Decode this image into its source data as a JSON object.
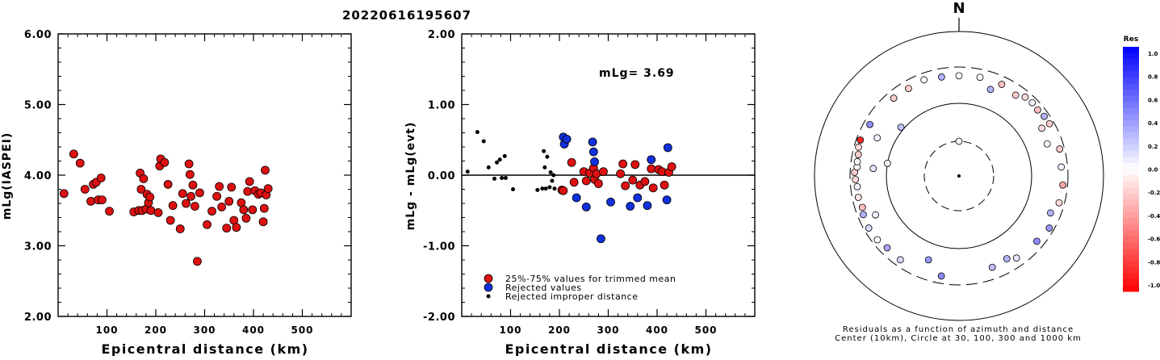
{
  "title": "20220616195607",
  "colors": {
    "red": "#dd1111",
    "blue": "#1130dd",
    "black": "#000000"
  },
  "chart_data": [
    {
      "type": "scatter",
      "name": "left",
      "xlabel": "Epicentral distance (km)",
      "ylabel": "mLg(IASPEI)",
      "xlim": [
        0,
        600
      ],
      "ylim": [
        2.0,
        6.0
      ],
      "xticks": [
        "100",
        "200",
        "300",
        "400",
        "500"
      ],
      "xtick_values": [
        100,
        200,
        300,
        400,
        500
      ],
      "yticks": [
        "2.00",
        "3.00",
        "4.00",
        "5.00",
        "6.00"
      ],
      "ytick_values": [
        2,
        3,
        4,
        5,
        6
      ],
      "points": [
        [
          12,
          3.74
        ],
        [
          32,
          4.3
        ],
        [
          45,
          4.17
        ],
        [
          55,
          3.8
        ],
        [
          67,
          3.63
        ],
        [
          72,
          3.87
        ],
        [
          78,
          3.9
        ],
        [
          82,
          3.65
        ],
        [
          88,
          3.96
        ],
        [
          90,
          3.65
        ],
        [
          105,
          3.49
        ],
        [
          155,
          3.48
        ],
        [
          165,
          3.5
        ],
        [
          168,
          4.03
        ],
        [
          170,
          3.8
        ],
        [
          172,
          3.5
        ],
        [
          175,
          3.95
        ],
        [
          180,
          3.52
        ],
        [
          182,
          3.73
        ],
        [
          185,
          3.61
        ],
        [
          188,
          3.69
        ],
        [
          190,
          3.5
        ],
        [
          205,
          3.47
        ],
        [
          208,
          4.13
        ],
        [
          210,
          4.23
        ],
        [
          218,
          4.18
        ],
        [
          225,
          3.87
        ],
        [
          230,
          3.36
        ],
        [
          235,
          3.57
        ],
        [
          250,
          3.24
        ],
        [
          255,
          3.74
        ],
        [
          262,
          3.6
        ],
        [
          268,
          4.16
        ],
        [
          270,
          4.01
        ],
        [
          272,
          3.7
        ],
        [
          276,
          3.86
        ],
        [
          280,
          3.56
        ],
        [
          285,
          2.78
        ],
        [
          290,
          3.75
        ],
        [
          305,
          3.3
        ],
        [
          315,
          3.49
        ],
        [
          325,
          3.7
        ],
        [
          330,
          3.84
        ],
        [
          335,
          3.55
        ],
        [
          345,
          3.25
        ],
        [
          350,
          3.63
        ],
        [
          355,
          3.83
        ],
        [
          360,
          3.36
        ],
        [
          365,
          3.26
        ],
        [
          375,
          3.61
        ],
        [
          380,
          3.51
        ],
        [
          385,
          3.39
        ],
        [
          388,
          3.77
        ],
        [
          392,
          3.91
        ],
        [
          398,
          3.51
        ],
        [
          403,
          3.78
        ],
        [
          410,
          3.73
        ],
        [
          415,
          3.75
        ],
        [
          420,
          3.34
        ],
        [
          422,
          3.53
        ],
        [
          424,
          4.07
        ],
        [
          426,
          3.72
        ],
        [
          430,
          3.81
        ]
      ]
    },
    {
      "type": "scatter",
      "name": "middle",
      "xlabel": "Epicentral distance (km)",
      "ylabel": "mLg - mLg(evt)",
      "annotation": "mLg= 3.69",
      "xlim": [
        0,
        600
      ],
      "ylim": [
        -2.0,
        2.0
      ],
      "xticks": [
        "100",
        "200",
        "300",
        "400",
        "500"
      ],
      "xtick_values": [
        100,
        200,
        300,
        400,
        500
      ],
      "yticks": [
        "-2.00",
        "-1.00",
        "0.00",
        "1.00",
        "2.00"
      ],
      "ytick_values": [
        -2,
        -1,
        0,
        1,
        2
      ],
      "legend": [
        {
          "label": "25%-75% values for trimmed mean",
          "color": "red",
          "size": "large"
        },
        {
          "label": "Rejected values",
          "color": "blue",
          "size": "large"
        },
        {
          "label": "Rejected improper distance",
          "color": "black",
          "size": "small"
        }
      ],
      "series": [
        {
          "color": "red",
          "size": "large",
          "points": [
            [
              205,
              -0.21
            ],
            [
              208,
              -0.22
            ],
            [
              225,
              0.18
            ],
            [
              230,
              -0.1
            ],
            [
              250,
              0.05
            ],
            [
              255,
              -0.08
            ],
            [
              262,
              0.03
            ],
            [
              270,
              0.1
            ],
            [
              272,
              -0.06
            ],
            [
              276,
              0.02
            ],
            [
              280,
              -0.12
            ],
            [
              290,
              0.05
            ],
            [
              325,
              0.02
            ],
            [
              330,
              0.16
            ],
            [
              335,
              -0.15
            ],
            [
              350,
              -0.07
            ],
            [
              355,
              0.15
            ],
            [
              365,
              -0.14
            ],
            [
              375,
              -0.09
            ],
            [
              388,
              0.09
            ],
            [
              392,
              -0.18
            ],
            [
              403,
              0.08
            ],
            [
              410,
              0.05
            ],
            [
              415,
              -0.14
            ],
            [
              424,
              0.04
            ],
            [
              430,
              0.12
            ]
          ]
        },
        {
          "color": "blue",
          "size": "large",
          "points": [
            [
              208,
              0.54
            ],
            [
              210,
              0.44
            ],
            [
              215,
              0.51
            ],
            [
              235,
              -0.32
            ],
            [
              255,
              -0.45
            ],
            [
              268,
              0.47
            ],
            [
              270,
              0.33
            ],
            [
              272,
              0.19
            ],
            [
              285,
              -0.9
            ],
            [
              305,
              -0.38
            ],
            [
              345,
              -0.44
            ],
            [
              360,
              -0.32
            ],
            [
              380,
              -0.43
            ],
            [
              388,
              0.22
            ],
            [
              420,
              -0.35
            ],
            [
              422,
              0.39
            ]
          ]
        },
        {
          "color": "black",
          "size": "small",
          "points": [
            [
              12,
              0.05
            ],
            [
              32,
              0.61
            ],
            [
              45,
              0.48
            ],
            [
              55,
              0.11
            ],
            [
              67,
              -0.05
            ],
            [
              72,
              0.18
            ],
            [
              78,
              0.22
            ],
            [
              82,
              -0.04
            ],
            [
              88,
              0.27
            ],
            [
              90,
              -0.04
            ],
            [
              105,
              -0.2
            ],
            [
              155,
              -0.21
            ],
            [
              165,
              -0.19
            ],
            [
              168,
              0.34
            ],
            [
              170,
              0.11
            ],
            [
              172,
              -0.19
            ],
            [
              175,
              0.26
            ],
            [
              180,
              -0.17
            ],
            [
              182,
              0.04
            ],
            [
              185,
              -0.08
            ],
            [
              188,
              0.0
            ],
            [
              190,
              -0.19
            ]
          ]
        }
      ]
    },
    {
      "type": "scatter",
      "name": "polar",
      "north_label": "N",
      "caption_line1": "Residuals as a function of azimuth and distance",
      "caption_line2": "Center (10km), Circle at 30, 100, 300 and 1000 km",
      "colorbar_title": "Res",
      "colorbar_labels": [
        "1.0",
        "0.8",
        "0.6",
        "0.4",
        "0.2",
        "0.0",
        "-0.2",
        "-0.4",
        "-0.6",
        "-0.8",
        "-1.0"
      ],
      "rings_km": [
        30,
        100,
        300,
        1000
      ],
      "points": [
        {
          "az": 0,
          "r": 30,
          "res": 0.0
        },
        {
          "az": 280,
          "r": 100,
          "res": 0.05
        },
        {
          "az": 310,
          "r": 110,
          "res": 0.25
        },
        {
          "az": 295,
          "r": 170,
          "res": 0.05
        },
        {
          "az": 20,
          "r": 180,
          "res": 0.3
        },
        {
          "az": 275,
          "r": 150,
          "res": 0.1
        },
        {
          "az": 200,
          "r": 165,
          "res": 0.4
        },
        {
          "az": 245,
          "r": 180,
          "res": 0.05
        },
        {
          "az": 150,
          "r": 200,
          "res": 0.3
        },
        {
          "az": 35,
          "r": 220,
          "res": -0.2
        },
        {
          "az": 60,
          "r": 200,
          "res": -0.15
        },
        {
          "az": 70,
          "r": 190,
          "res": 0.02
        },
        {
          "az": 350,
          "r": 232,
          "res": 0.3
        },
        {
          "az": 0,
          "r": 230,
          "res": 0.0
        },
        {
          "az": 12,
          "r": 235,
          "res": 0.0
        },
        {
          "az": 25,
          "r": 236,
          "res": -0.25
        },
        {
          "az": 330,
          "r": 236,
          "res": -0.2
        },
        {
          "az": 40,
          "r": 250,
          "res": -0.15
        },
        {
          "az": 45,
          "r": 255,
          "res": 0.05
        },
        {
          "az": 50,
          "r": 248,
          "res": -0.25
        },
        {
          "az": 55,
          "r": 258,
          "res": 0.3
        },
        {
          "az": 60,
          "r": 262,
          "res": -0.2
        },
        {
          "az": 75,
          "r": 260,
          "res": -0.2
        },
        {
          "az": 85,
          "r": 248,
          "res": 0.05
        },
        {
          "az": 95,
          "r": 260,
          "res": -0.35
        },
        {
          "az": 105,
          "r": 255,
          "res": -0.15
        },
        {
          "az": 112,
          "r": 220,
          "res": 0.3
        },
        {
          "az": 120,
          "r": 260,
          "res": 0.4
        },
        {
          "az": 130,
          "r": 240,
          "res": 0.45
        },
        {
          "az": 145,
          "r": 230,
          "res": 0.1
        },
        {
          "az": 160,
          "r": 210,
          "res": 0.25
        },
        {
          "az": 190,
          "r": 240,
          "res": 0.45
        },
        {
          "az": 215,
          "r": 245,
          "res": 0.15
        },
        {
          "az": 225,
          "r": 240,
          "res": 0.35
        },
        {
          "az": 232,
          "r": 255,
          "res": 0.0
        },
        {
          "az": 240,
          "r": 260,
          "res": 0.15
        },
        {
          "az": 248,
          "r": 252,
          "res": 0.3
        },
        {
          "az": 252,
          "r": 240,
          "res": -0.25
        },
        {
          "az": 258,
          "r": 250,
          "res": -0.1
        },
        {
          "az": 264,
          "r": 245,
          "res": 0.05
        },
        {
          "az": 268,
          "r": 255,
          "res": -0.15
        },
        {
          "az": 272,
          "r": 262,
          "res": -0.2
        },
        {
          "az": 275,
          "r": 245,
          "res": 0.0
        },
        {
          "az": 278,
          "r": 248,
          "res": 0.0
        },
        {
          "az": 282,
          "r": 250,
          "res": -0.2
        },
        {
          "az": 286,
          "r": 262,
          "res": -0.15
        },
        {
          "az": 290,
          "r": 266,
          "res": -0.85
        },
        {
          "az": 300,
          "r": 250,
          "res": 0.45
        },
        {
          "az": 320,
          "r": 240,
          "res": -0.2
        },
        {
          "az": 340,
          "r": 245,
          "res": 0.0
        }
      ]
    }
  ]
}
